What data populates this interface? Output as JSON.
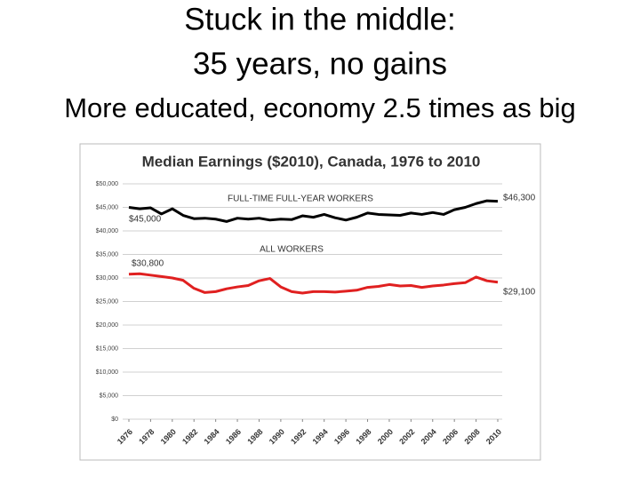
{
  "slide": {
    "title_lines": [
      "Stuck in the middle:",
      "35 years, no gains"
    ],
    "subtitle": "More educated, economy 2.5 times as big"
  },
  "chart_data": {
    "type": "line",
    "title": "Median Earnings ($2010), Canada, 1976 to 2010",
    "x": [
      1976,
      1977,
      1978,
      1979,
      1980,
      1981,
      1982,
      1983,
      1984,
      1985,
      1986,
      1987,
      1988,
      1989,
      1990,
      1991,
      1992,
      1993,
      1994,
      1995,
      1996,
      1997,
      1998,
      1999,
      2000,
      2001,
      2002,
      2003,
      2004,
      2005,
      2006,
      2007,
      2008,
      2009,
      2010
    ],
    "series": [
      {
        "name": "FULL-TIME FULL-YEAR WORKERS",
        "color": "#000000",
        "values": [
          45000,
          44700,
          44900,
          43600,
          44700,
          43300,
          42600,
          42700,
          42500,
          42000,
          42700,
          42500,
          42700,
          42300,
          42500,
          42400,
          43200,
          42900,
          43500,
          42800,
          42300,
          42900,
          43800,
          43500,
          43400,
          43300,
          43800,
          43500,
          43900,
          43500,
          44500,
          45000,
          45800,
          46400,
          46300
        ],
        "value_labels": [
          "$45,000",
          null,
          null,
          null,
          null,
          null,
          null,
          null,
          null,
          null,
          null,
          null,
          null,
          null,
          null,
          null,
          null,
          null,
          null,
          null,
          null,
          null,
          null,
          null,
          null,
          null,
          null,
          null,
          null,
          null,
          null,
          null,
          null,
          null,
          "$46,300"
        ]
      },
      {
        "name": "ALL WORKERS",
        "color": "#e02020",
        "values": [
          30800,
          30900,
          30600,
          30300,
          30000,
          29500,
          27800,
          26900,
          27100,
          27700,
          28100,
          28400,
          29400,
          29900,
          28100,
          27100,
          26800,
          27100,
          27100,
          27000,
          27200,
          27400,
          28000,
          28200,
          28600,
          28300,
          28400,
          28000,
          28300,
          28500,
          28800,
          29000,
          30200,
          29400,
          29100
        ],
        "value_labels": [
          "$30,800",
          null,
          null,
          null,
          null,
          null,
          null,
          null,
          null,
          null,
          null,
          null,
          null,
          null,
          null,
          null,
          null,
          null,
          null,
          null,
          null,
          null,
          null,
          null,
          null,
          null,
          null,
          null,
          null,
          null,
          null,
          null,
          null,
          null,
          "$29,100"
        ]
      }
    ],
    "xlim": [
      1976,
      2010
    ],
    "xticks": [
      1976,
      1978,
      1980,
      1982,
      1984,
      1986,
      1988,
      1990,
      1992,
      1994,
      1996,
      1998,
      2000,
      2002,
      2004,
      2006,
      2008,
      2010
    ],
    "ylim": [
      0,
      50000
    ],
    "yticks": [
      {
        "value": 0,
        "label": "$0"
      },
      {
        "value": 5000,
        "label": "$5,000"
      },
      {
        "value": 10000,
        "label": "$10,000"
      },
      {
        "value": 15000,
        "label": "$15,000"
      },
      {
        "value": 20000,
        "label": "$20,000"
      },
      {
        "value": 25000,
        "label": "$25,000"
      },
      {
        "value": 30000,
        "label": "$30,000"
      },
      {
        "value": 35000,
        "label": "$35,000"
      },
      {
        "value": 40000,
        "label": "$40,000"
      },
      {
        "value": 45000,
        "label": "$45,000"
      },
      {
        "value": 50000,
        "label": "$50,000"
      }
    ],
    "grid": true
  }
}
